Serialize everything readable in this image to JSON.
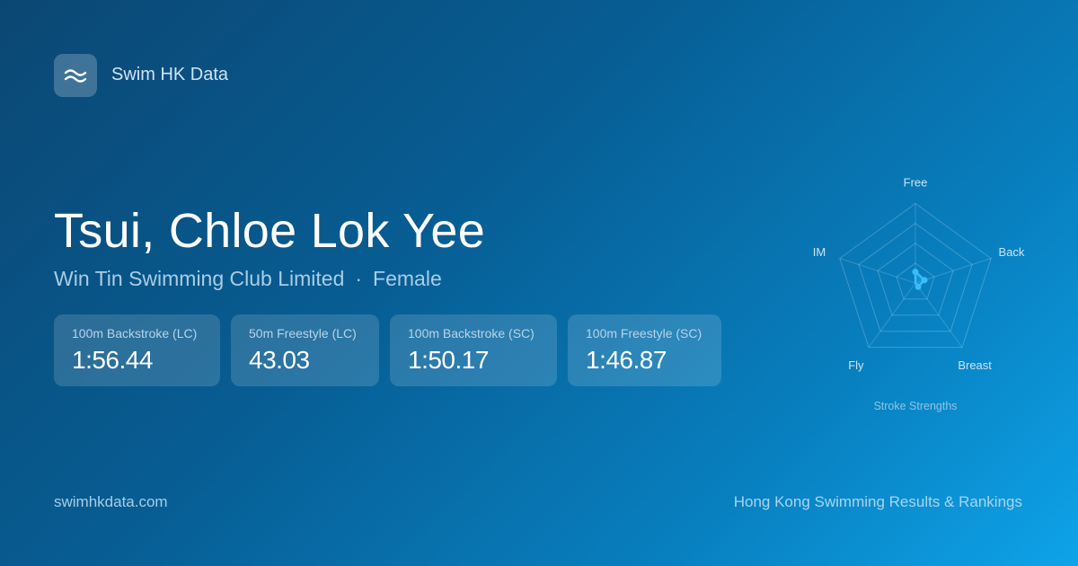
{
  "brand": {
    "name": "Swim HK Data",
    "icon": "waves-icon"
  },
  "athlete": {
    "name": "Tsui, Chloe Lok Yee",
    "club": "Win Tin Swimming Club Limited",
    "separator": "·",
    "gender": "Female"
  },
  "best_times": [
    {
      "event": "100m Backstroke (LC)",
      "time": "1:56.44"
    },
    {
      "event": "50m Freestyle (LC)",
      "time": "43.03"
    },
    {
      "event": "100m Backstroke (SC)",
      "time": "1:50.17"
    },
    {
      "event": "100m Freestyle (SC)",
      "time": "1:46.87"
    }
  ],
  "chart_data": {
    "type": "radar",
    "title": "Stroke Strengths",
    "categories": [
      "Free",
      "Back",
      "Breast",
      "Fly",
      "IM"
    ],
    "values": [
      0.14,
      0.12,
      0.06,
      0,
      0
    ],
    "range": [
      0,
      1
    ],
    "grid_rings": 4,
    "color": "#38bdf8"
  },
  "footer": {
    "url": "swimhkdata.com",
    "tagline": "Hong Kong Swimming Results & Rankings"
  }
}
